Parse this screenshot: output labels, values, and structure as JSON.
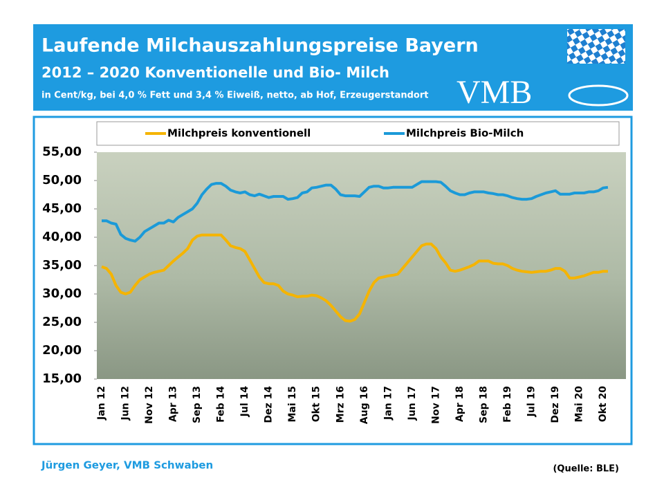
{
  "header": {
    "title": "Laufende Milchauszahlungspreise Bayern",
    "subtitle": "2012 – 2020 Konventionelle und Bio- Milch",
    "note": "in Cent/kg, bei 4,0 % Fett und 3,4 % Eiweiß, netto, ab Hof, Erzeugerstandort",
    "logo": "VMB"
  },
  "footer": {
    "author": "Jürgen Geyer, VMB Schwaben",
    "source": "(Quelle: BLE)"
  },
  "chart_data": {
    "type": "line",
    "legend": "top",
    "grid": false,
    "categories": [
      "Jan 12",
      null,
      null,
      null,
      null,
      "Jun 12",
      null,
      null,
      null,
      null,
      "Nov 12",
      null,
      null,
      null,
      null,
      "Apr 13",
      null,
      null,
      null,
      null,
      "Sep 13",
      null,
      null,
      null,
      null,
      "Feb 14",
      null,
      null,
      null,
      null,
      "Jul 14",
      null,
      null,
      null,
      null,
      "Dez 14",
      null,
      null,
      null,
      null,
      "Mai 15",
      null,
      null,
      null,
      null,
      "Okt 15",
      null,
      null,
      null,
      null,
      "Mrz 16",
      null,
      null,
      null,
      null,
      "Aug 16",
      null,
      null,
      null,
      null,
      "Jan 17",
      null,
      null,
      null,
      null,
      "Jun 17",
      null,
      null,
      null,
      null,
      "Nov 17",
      null,
      null,
      null,
      null,
      "Apr 18",
      null,
      null,
      null,
      null,
      "Sep 18",
      null,
      null,
      null,
      null,
      "Feb 19",
      null,
      null,
      null,
      null,
      "Jul 19",
      null,
      null,
      null,
      null,
      "Dez 19",
      null,
      null,
      null,
      null,
      "Mai 20",
      null,
      null,
      null,
      null,
      "Okt 20",
      null
    ],
    "ylim": [
      15,
      55
    ],
    "yticks": [
      {
        "value": 15,
        "label": "15,00"
      },
      {
        "value": 20,
        "label": "20,00"
      },
      {
        "value": 25,
        "label": "25,00"
      },
      {
        "value": 30,
        "label": "30,00"
      },
      {
        "value": 35,
        "label": "35,00"
      },
      {
        "value": 40,
        "label": "40,00"
      },
      {
        "value": 45,
        "label": "45,00"
      },
      {
        "value": 50,
        "label": "50,00"
      },
      {
        "value": 55,
        "label": "55,00"
      }
    ],
    "series": [
      {
        "name": "Milchpreis konventionell",
        "color": "#f5b400",
        "values": [
          34.8,
          34.5,
          33.5,
          31.5,
          30.3,
          30.0,
          30.3,
          31.5,
          32.5,
          33.0,
          33.5,
          33.8,
          34.0,
          34.2,
          35.0,
          35.8,
          36.5,
          37.2,
          38.0,
          39.5,
          40.2,
          40.4,
          40.4,
          40.4,
          40.4,
          40.4,
          39.5,
          38.5,
          38.2,
          38.0,
          37.5,
          36.0,
          34.5,
          33.0,
          32.0,
          31.8,
          31.8,
          31.5,
          30.5,
          30.0,
          29.8,
          29.5,
          29.6,
          29.6,
          29.8,
          29.7,
          29.3,
          28.8,
          28.0,
          27.0,
          26.0,
          25.3,
          25.2,
          25.5,
          26.5,
          28.5,
          30.5,
          32.0,
          32.8,
          33.0,
          33.2,
          33.3,
          33.5,
          34.5,
          35.5,
          36.5,
          37.5,
          38.5,
          38.8,
          38.8,
          38.0,
          36.5,
          35.5,
          34.2,
          34.0,
          34.2,
          34.5,
          34.8,
          35.2,
          35.8,
          35.8,
          35.8,
          35.4,
          35.3,
          35.3,
          35.0,
          34.5,
          34.2,
          34.0,
          33.9,
          33.8,
          33.9,
          34.0,
          34.0,
          34.2,
          34.5,
          34.5,
          34.0,
          32.8,
          32.8,
          33.0,
          33.2,
          33.5,
          33.8,
          33.8,
          34.0,
          34.0
        ]
      },
      {
        "name": "Milchpreis Bio-Milch",
        "color": "#1b9ad8",
        "values": [
          42.9,
          42.9,
          42.5,
          42.3,
          40.5,
          39.8,
          39.5,
          39.3,
          40.0,
          41.0,
          41.5,
          42.0,
          42.5,
          42.5,
          43.0,
          42.7,
          43.5,
          44.0,
          44.5,
          45.0,
          46.0,
          47.5,
          48.5,
          49.3,
          49.5,
          49.5,
          49.0,
          48.3,
          48.0,
          47.8,
          48.0,
          47.5,
          47.3,
          47.6,
          47.3,
          47.0,
          47.2,
          47.2,
          47.2,
          46.7,
          46.8,
          47.0,
          47.8,
          48.0,
          48.7,
          48.8,
          49.0,
          49.2,
          49.2,
          48.5,
          47.5,
          47.3,
          47.3,
          47.3,
          47.2,
          48.0,
          48.8,
          49.0,
          49.0,
          48.7,
          48.7,
          48.8,
          48.8,
          48.8,
          48.8,
          48.8,
          49.3,
          49.8,
          49.8,
          49.8,
          49.8,
          49.7,
          49.0,
          48.2,
          47.8,
          47.5,
          47.5,
          47.8,
          48.0,
          48.0,
          48.0,
          47.8,
          47.7,
          47.5,
          47.5,
          47.3,
          47.0,
          46.8,
          46.7,
          46.7,
          46.8,
          47.2,
          47.5,
          47.8,
          48.0,
          48.2,
          47.6,
          47.6,
          47.6,
          47.8,
          47.8,
          47.8,
          48.0,
          48.0,
          48.2,
          48.7,
          48.8
        ]
      }
    ]
  }
}
